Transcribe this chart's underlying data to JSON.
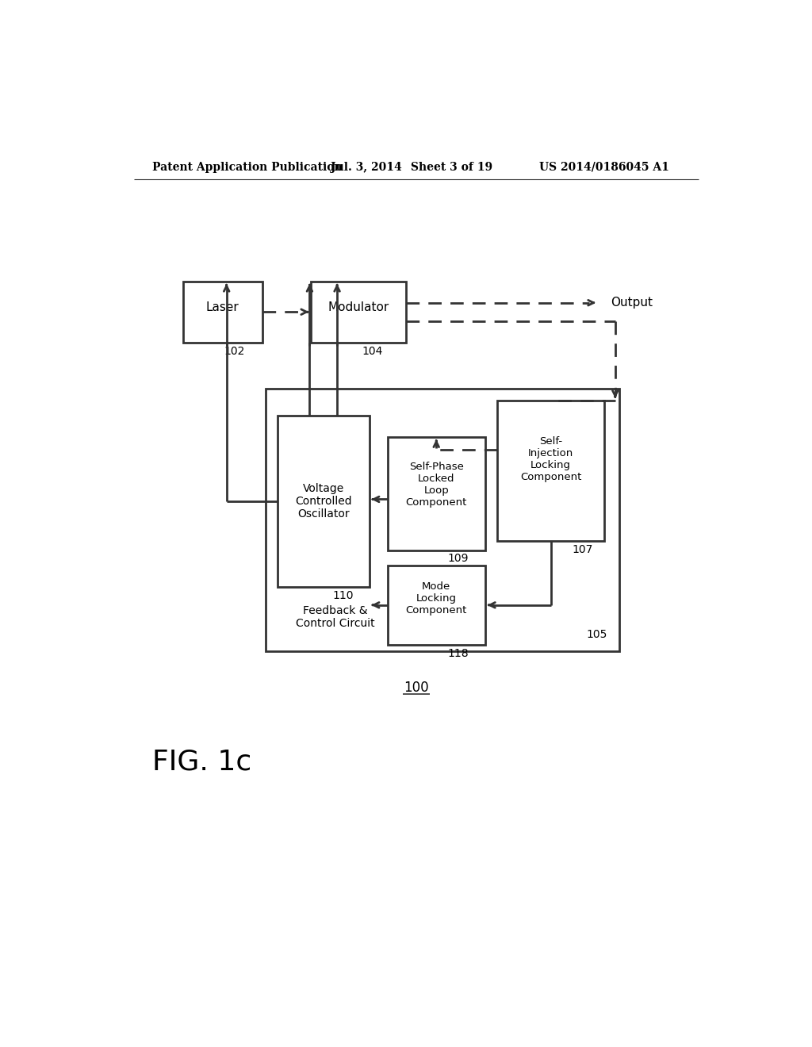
{
  "bg_color": "#ffffff",
  "header_text": "Patent Application Publication",
  "header_date": "Jul. 3, 2014",
  "header_sheet": "Sheet 3 of 19",
  "header_patent": "US 2014/0186045 A1",
  "fig_label": "FIG. 1c",
  "system_label": "100"
}
